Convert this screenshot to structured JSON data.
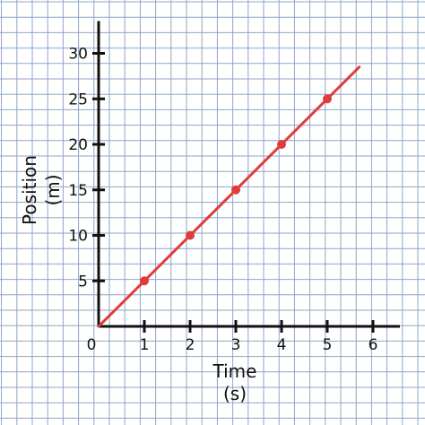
{
  "chart_data": {
    "type": "line",
    "xlabel": "Time",
    "xunit": "(s)",
    "ylabel": "Position",
    "yunit": "(m)",
    "origin_label": "0",
    "xlim": [
      0,
      6
    ],
    "ylim": [
      0,
      30
    ],
    "x_ticks": [
      1,
      2,
      3,
      4,
      5,
      6
    ],
    "y_ticks": [
      5,
      10,
      15,
      20,
      25,
      30
    ],
    "grid": true,
    "points": [
      {
        "x": 1,
        "y": 5
      },
      {
        "x": 2,
        "y": 10
      },
      {
        "x": 3,
        "y": 15
      },
      {
        "x": 4,
        "y": 20
      },
      {
        "x": 5,
        "y": 25
      }
    ],
    "line": {
      "x_start": 0,
      "y_start": 0,
      "x_end": 5.7,
      "y_end": 28.5
    },
    "colors": {
      "line": "#e03c3c",
      "grid": "#8ea6c8",
      "axis": "#111111"
    }
  }
}
